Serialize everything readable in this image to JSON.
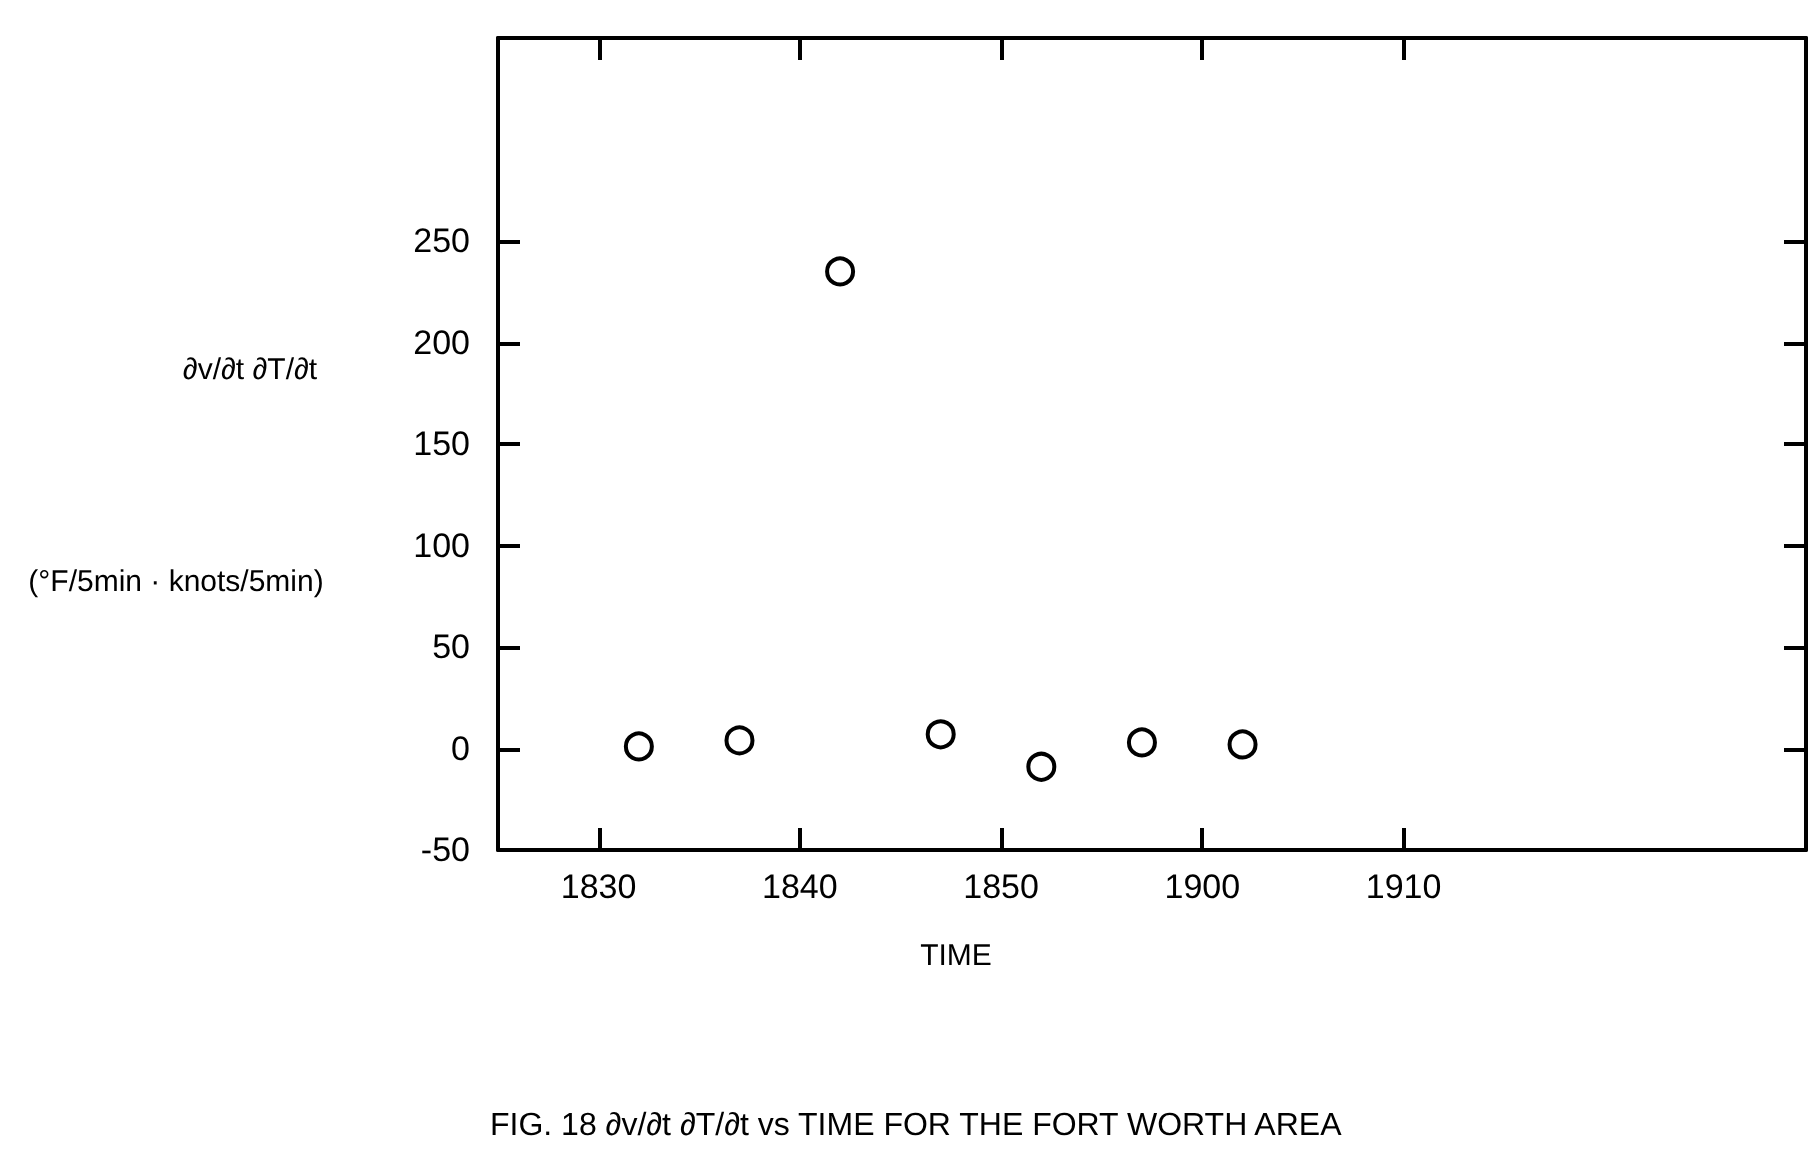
{
  "chart_data": {
    "type": "scatter",
    "xlabel": "TIME",
    "ylabel": "∂v/∂t ∂T/∂t\n(°F/5min · knots/5min)",
    "annotations": [
      "FIG. 18 ∂v/∂t ∂T/∂t vs TIME FOR THE FORT WORTH AREA"
    ],
    "categories": [
      null,
      null,
      null,
      null,
      null,
      "1830",
      null,
      null,
      null,
      null,
      null,
      null,
      null,
      null,
      null,
      "1840",
      null,
      null,
      null,
      null,
      null,
      null,
      null,
      null,
      null,
      "1850",
      null,
      null,
      null,
      null,
      null,
      null,
      null,
      null,
      null,
      "1900",
      null,
      null,
      null,
      null,
      null,
      null,
      null,
      null,
      null,
      "1910",
      null,
      null,
      null,
      null,
      null,
      null,
      null,
      null,
      null,
      null,
      null,
      null,
      null,
      null,
      null,
      null,
      null,
      null,
      null,
      null
    ],
    "values": [
      null,
      null,
      null,
      null,
      null,
      null,
      null,
      1,
      null,
      null,
      null,
      null,
      4,
      null,
      null,
      null,
      null,
      235,
      null,
      null,
      null,
      null,
      7,
      null,
      null,
      null,
      null,
      -9,
      null,
      null,
      null,
      null,
      3,
      null,
      null,
      null,
      null,
      2,
      null,
      null,
      null,
      null,
      null,
      null,
      null,
      null,
      null,
      null,
      null,
      null,
      null,
      null,
      null,
      null,
      null,
      null,
      null,
      null,
      null,
      null,
      null,
      null,
      null,
      null,
      null,
      null
    ],
    "color": "#000000",
    "marker": "circle",
    "ylim": [
      -50,
      350
    ],
    "yticks": [
      -50,
      0,
      50,
      100,
      150,
      200,
      250
    ],
    "grid": false
  }
}
